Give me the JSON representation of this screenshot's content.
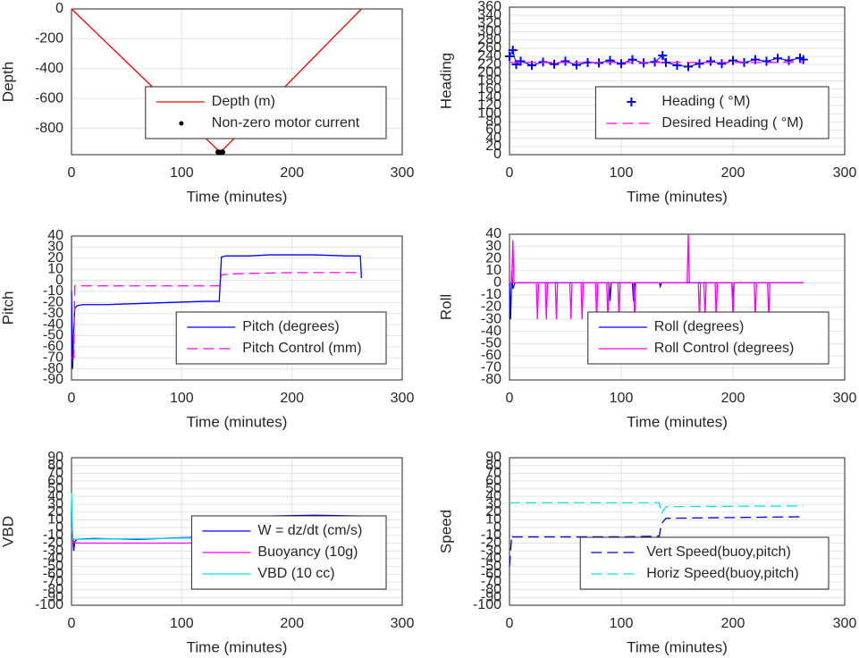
{
  "chart_data": [
    {
      "type": "line",
      "xlabel": "Time (minutes)",
      "ylabel": "Depth",
      "xlim": [
        0,
        300
      ],
      "xticks": [
        0,
        100,
        200,
        300
      ],
      "ylim": [
        -975,
        0
      ],
      "yticks": [
        -800,
        -600,
        -400,
        -200,
        0
      ],
      "grid": true,
      "legend": "lower right",
      "series": [
        {
          "name": "Depth (m)",
          "color": "#ff0000",
          "style": "solid",
          "x": [
            0,
            135,
            263
          ],
          "values": [
            0,
            -960,
            0
          ]
        },
        {
          "name": "Non-zero motor current",
          "color": "#000000",
          "style": "dot",
          "x": [
            133,
            134,
            135,
            136,
            137
          ],
          "values": [
            -958,
            -960,
            -961,
            -960,
            -958
          ]
        }
      ]
    },
    {
      "type": "line",
      "xlabel": "Time (minutes)",
      "ylabel": "Heading",
      "xlim": [
        0,
        300
      ],
      "xticks": [
        0,
        100,
        200,
        300
      ],
      "ylim": [
        0,
        360
      ],
      "yticks": [
        0,
        20,
        40,
        60,
        80,
        100,
        120,
        140,
        160,
        180,
        200,
        220,
        240,
        260,
        280,
        300,
        320,
        340,
        360
      ],
      "grid": true,
      "legend": "lower right",
      "series": [
        {
          "name": "Heading ( °M)",
          "color": "#0000ff",
          "style": "plus",
          "x": [
            0,
            3,
            6,
            10,
            20,
            30,
            40,
            50,
            60,
            70,
            80,
            90,
            100,
            110,
            120,
            130,
            137,
            140,
            150,
            160,
            170,
            180,
            190,
            200,
            210,
            220,
            230,
            240,
            250,
            260,
            263
          ],
          "values": [
            240,
            255,
            220,
            228,
            218,
            226,
            221,
            228,
            219,
            225,
            224,
            230,
            222,
            232,
            224,
            226,
            242,
            225,
            218,
            215,
            222,
            228,
            222,
            230,
            225,
            232,
            228,
            235,
            230,
            236,
            232
          ]
        },
        {
          "name": "Desired Heading ( °M)",
          "color": "#ff00ff",
          "style": "dashed",
          "x": [
            0,
            263
          ],
          "values": [
            225,
            225
          ]
        }
      ]
    },
    {
      "type": "line",
      "xlabel": "Time (minutes)",
      "ylabel": "Pitch",
      "xlim": [
        0,
        300
      ],
      "xticks": [
        0,
        100,
        200,
        300
      ],
      "ylim": [
        -90,
        40
      ],
      "yticks": [
        -90,
        -80,
        -70,
        -60,
        -50,
        -40,
        -30,
        -20,
        -10,
        0,
        10,
        20,
        30,
        40
      ],
      "grid": true,
      "legend": "lower right",
      "series": [
        {
          "name": "Pitch (degrees)",
          "color": "#0000ff",
          "style": "solid",
          "x": [
            0,
            1,
            2,
            3,
            5,
            10,
            30,
            60,
            90,
            120,
            134,
            136,
            140,
            160,
            180,
            200,
            220,
            250,
            262,
            263
          ],
          "values": [
            -10,
            -80,
            -45,
            -25,
            -23,
            -22,
            -22,
            -21,
            -20,
            -19,
            -19,
            21,
            22,
            22,
            23,
            23,
            23,
            22,
            22,
            2
          ]
        },
        {
          "name": "Pitch Control (mm)",
          "color": "#ff00ff",
          "style": "dashed",
          "x": [
            0,
            2,
            3,
            5,
            134,
            136,
            150,
            200,
            263
          ],
          "values": [
            -70,
            -70,
            -5,
            -5,
            -5,
            5,
            6,
            7,
            7
          ]
        }
      ]
    },
    {
      "type": "line",
      "xlabel": "Time (minutes)",
      "ylabel": "Roll",
      "xlim": [
        0,
        300
      ],
      "xticks": [
        0,
        100,
        200,
        300
      ],
      "ylim": [
        -80,
        40
      ],
      "yticks": [
        -80,
        -70,
        -60,
        -50,
        -40,
        -30,
        -20,
        -10,
        0,
        10,
        20,
        30,
        40
      ],
      "grid": true,
      "legend": "lower right",
      "series": [
        {
          "name": "Roll (degrees)",
          "color": "#0000ff",
          "style": "solid",
          "x": [
            0,
            1,
            2,
            3,
            5,
            10,
            50,
            89,
            90,
            91,
            110,
            111,
            112,
            134,
            135,
            136,
            150,
            199,
            200,
            201,
            263
          ],
          "values": [
            0,
            -30,
            10,
            -5,
            0,
            0,
            0,
            0,
            -15,
            0,
            0,
            -15,
            0,
            0,
            -3,
            0,
            0,
            0,
            -12,
            0,
            0
          ]
        },
        {
          "name": "Roll Control (degrees)",
          "color": "#ff00ff",
          "style": "solid",
          "x": [
            0,
            2,
            3,
            4,
            24,
            25,
            26,
            32,
            33,
            34,
            41,
            42,
            43,
            54,
            55,
            56,
            64,
            65,
            66,
            77,
            78,
            79,
            87,
            88,
            89,
            97,
            98,
            99,
            111,
            112,
            113,
            159,
            160,
            161,
            169,
            170,
            171,
            174,
            175,
            176,
            184,
            185,
            186,
            199,
            200,
            201,
            219,
            220,
            221,
            231,
            232,
            233,
            263
          ],
          "values": [
            0,
            0,
            35,
            0,
            0,
            -30,
            0,
            0,
            -30,
            0,
            0,
            -30,
            0,
            0,
            -30,
            0,
            0,
            -30,
            0,
            0,
            -30,
            0,
            0,
            -30,
            0,
            0,
            -30,
            0,
            0,
            -30,
            0,
            0,
            40,
            0,
            0,
            -30,
            0,
            0,
            -30,
            0,
            0,
            -30,
            0,
            0,
            -30,
            0,
            0,
            -30,
            0,
            0,
            -30,
            0,
            0
          ]
        }
      ]
    },
    {
      "type": "line",
      "xlabel": "Time (minutes)",
      "ylabel": "VBD",
      "xlim": [
        0,
        300
      ],
      "xticks": [
        0,
        100,
        200,
        300
      ],
      "ylim": [
        -100,
        90
      ],
      "yticks": [
        -100,
        -90,
        -80,
        -70,
        -60,
        -50,
        -40,
        -30,
        -20,
        -10,
        0,
        10,
        20,
        30,
        40,
        50,
        60,
        70,
        80,
        90
      ],
      "grid": true,
      "legend": "lower right",
      "series": [
        {
          "name": "W = dz/dt (cm/s)",
          "color": "#0000ff",
          "style": "solid",
          "x": [
            0,
            1,
            2,
            3,
            5,
            20,
            60,
            100,
            134,
            135,
            136,
            137,
            140,
            180,
            220,
            262,
            263
          ],
          "values": [
            20,
            -10,
            -30,
            -18,
            -15,
            -14,
            -15,
            -13,
            -12,
            -10,
            5,
            14,
            14,
            15,
            16,
            15,
            6
          ]
        },
        {
          "name": "Buoyancy (10g)",
          "color": "#ff00ff",
          "style": "solid",
          "x": [
            0,
            2,
            3,
            5,
            134,
            136,
            137,
            263
          ],
          "values": [
            0,
            -20,
            -20,
            -20,
            -20,
            -5,
            10,
            10
          ]
        },
        {
          "name": "VBD (10 cc)",
          "color": "#00e5ee",
          "style": "solid",
          "x": [
            0,
            1,
            3,
            5,
            134,
            136,
            263
          ],
          "values": [
            45,
            -15,
            -15,
            -15,
            -13,
            15,
            15
          ]
        }
      ]
    },
    {
      "type": "line",
      "xlabel": "Time (minutes)",
      "ylabel": "Speed",
      "xlim": [
        0,
        300
      ],
      "xticks": [
        0,
        100,
        200,
        300
      ],
      "ylim": [
        -100,
        90
      ],
      "yticks": [
        -100,
        -90,
        -80,
        -70,
        -60,
        -50,
        -40,
        -30,
        -20,
        -10,
        0,
        10,
        20,
        30,
        40,
        50,
        60,
        70,
        80,
        90
      ],
      "grid": true,
      "legend": "lower right",
      "series": [
        {
          "name": "Vert Speed(buoy,pitch)",
          "color": "#0000cd",
          "style": "dashed",
          "x": [
            0,
            2,
            3,
            5,
            100,
            134,
            136,
            140,
            263
          ],
          "values": [
            -50,
            -10,
            -12,
            -12,
            -12,
            -11,
            5,
            12,
            14
          ]
        },
        {
          "name": "Horiz Speed(buoy,pitch)",
          "color": "#00e5ee",
          "style": "dashed",
          "x": [
            0,
            3,
            5,
            100,
            134,
            136,
            140,
            263
          ],
          "values": [
            32,
            32,
            32,
            32,
            32,
            18,
            27,
            28
          ]
        }
      ]
    }
  ]
}
